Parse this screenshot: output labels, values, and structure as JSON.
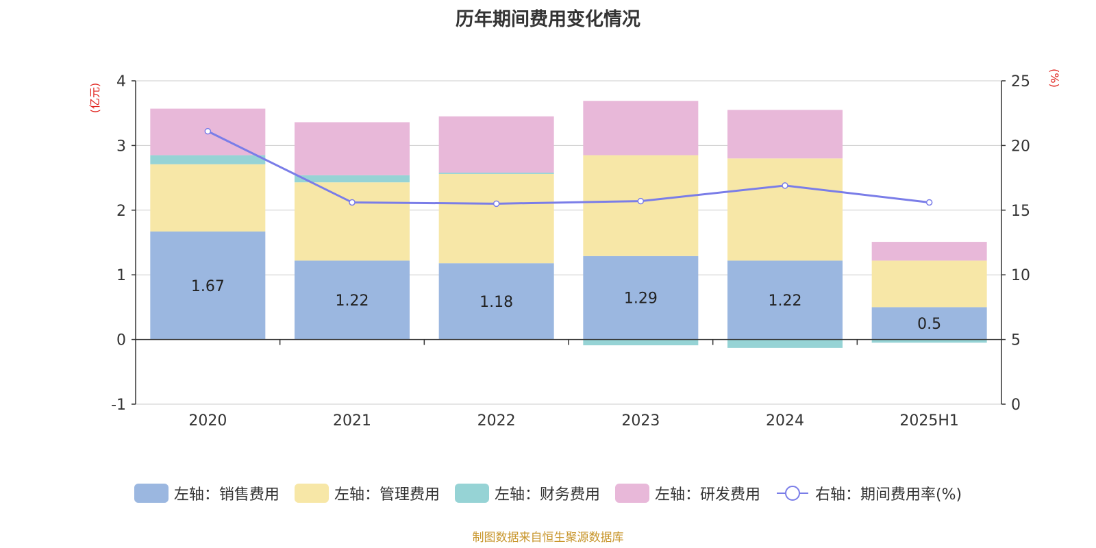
{
  "chart_data": {
    "type": "bar",
    "title": "历年期间费用变化情况",
    "categories": [
      "2020",
      "2021",
      "2022",
      "2023",
      "2024",
      "2025H1"
    ],
    "left_axis": {
      "unit_label": "(亿元)",
      "ylim": [
        -1,
        4
      ],
      "ticks": [
        "-1",
        "0",
        "1",
        "2",
        "3",
        "4"
      ]
    },
    "right_axis": {
      "unit_label": "(%)",
      "ylim": [
        0,
        25
      ],
      "ticks": [
        "0",
        "5",
        "10",
        "15",
        "20",
        "25"
      ]
    },
    "stacked": true,
    "grid": true,
    "legend_position": "bottom",
    "series": [
      {
        "name": "左轴：销售费用",
        "type": "bar",
        "axis": "left",
        "color": "#9bb7e0",
        "values": [
          1.67,
          1.22,
          1.18,
          1.29,
          1.22,
          0.5
        ],
        "labels": [
          "1.67",
          "1.22",
          "1.18",
          "1.29",
          "1.22",
          "0.5"
        ]
      },
      {
        "name": "左轴：管理费用",
        "type": "bar",
        "axis": "left",
        "color": "#f7e7a7",
        "values": [
          1.04,
          1.21,
          1.38,
          1.56,
          1.58,
          0.72
        ]
      },
      {
        "name": "左轴：财务费用",
        "type": "bar",
        "axis": "left",
        "color": "#96d3d5",
        "values": [
          0.14,
          0.11,
          0.02,
          -0.09,
          -0.13,
          -0.05
        ]
      },
      {
        "name": "左轴：研发费用",
        "type": "bar",
        "axis": "left",
        "color": "#e8b8d9",
        "values": [
          0.72,
          0.82,
          0.87,
          0.84,
          0.75,
          0.29
        ]
      },
      {
        "name": "右轴：期间费用率(%)",
        "type": "line",
        "axis": "right",
        "color": "#7a7de8",
        "values": [
          21.1,
          15.6,
          15.5,
          15.7,
          16.9,
          15.6
        ]
      }
    ]
  },
  "source_note": "制图数据来自恒生聚源数据库"
}
